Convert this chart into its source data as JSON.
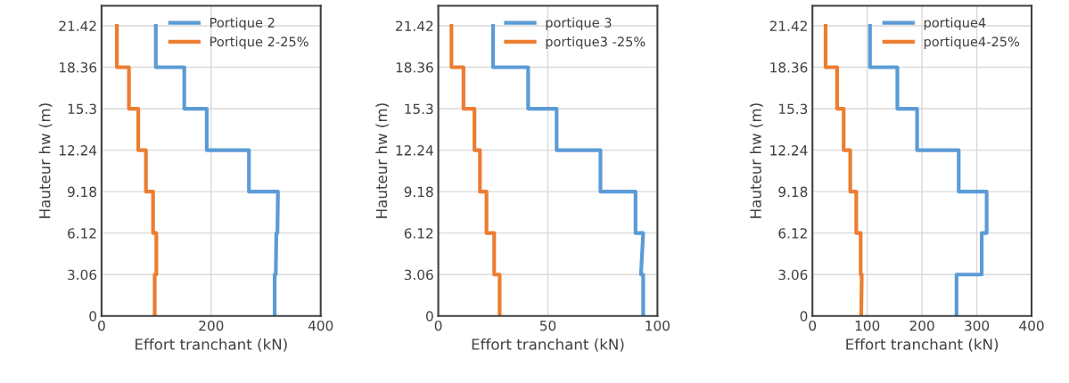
{
  "chart_data": [
    {
      "type": "line",
      "xlabel": "Effort tranchant (kN)",
      "ylabel": "Hauteur hw (m)",
      "xlim": [
        0,
        400
      ],
      "xticks": [
        0,
        200,
        400
      ],
      "ylim": [
        0,
        22.9
      ],
      "yticks": [
        0,
        3.06,
        6.12,
        9.18,
        12.24,
        15.3,
        18.36,
        21.42
      ],
      "grid": true,
      "legend": "top right",
      "series": [
        {
          "name": "Portique 2",
          "color": "#5b9bd5",
          "x": [
            99,
            99,
            151,
            151,
            192,
            192,
            269,
            269,
            322,
            321,
            319,
            318,
            316,
            316
          ],
          "values": [
            21.42,
            18.36,
            18.36,
            15.3,
            15.3,
            12.24,
            12.24,
            9.18,
            9.18,
            6.12,
            6.12,
            3.06,
            3.06,
            0
          ]
        },
        {
          "name": "Portique 2-25%",
          "color": "#ed7d31",
          "x": [
            28,
            28,
            50,
            50,
            67,
            67,
            81,
            81,
            94,
            94,
            100,
            100,
            97,
            97
          ],
          "values": [
            21.42,
            18.36,
            18.36,
            15.3,
            15.3,
            12.24,
            12.24,
            9.18,
            9.18,
            6.12,
            6.12,
            3.06,
            3.06,
            0
          ]
        }
      ]
    },
    {
      "type": "line",
      "xlabel": "Effort tranchant (kN)",
      "ylabel": "Hauteur hw (m)",
      "xlim": [
        0,
        100
      ],
      "xticks": [
        0,
        50,
        100
      ],
      "ylim": [
        0,
        22.9
      ],
      "yticks": [
        0,
        3.06,
        6.12,
        9.18,
        12.24,
        15.3,
        18.36,
        21.42
      ],
      "grid": true,
      "legend": "top right",
      "series": [
        {
          "name": "portique 3",
          "color": "#5b9bd5",
          "x": [
            25,
            25,
            41,
            41,
            54,
            54,
            74,
            74,
            90,
            90,
            93.5,
            92.5,
            93.5,
            93.5
          ],
          "values": [
            21.42,
            18.36,
            18.36,
            15.3,
            15.3,
            12.24,
            12.24,
            9.18,
            9.18,
            6.12,
            6.12,
            3.06,
            3.06,
            0
          ]
        },
        {
          "name": "portique3 -25%",
          "color": "#ed7d31",
          "x": [
            6,
            6,
            11.5,
            11.5,
            16.5,
            16.5,
            19,
            19,
            22,
            22,
            25.5,
            25.5,
            28,
            28
          ],
          "values": [
            21.42,
            18.36,
            18.36,
            15.3,
            15.3,
            12.24,
            12.24,
            9.18,
            9.18,
            6.12,
            6.12,
            3.06,
            3.06,
            0
          ]
        }
      ]
    },
    {
      "type": "line",
      "xlabel": "Effort tranchant (kN)",
      "ylabel": "Hauteur hw (m)",
      "xlim": [
        0,
        400
      ],
      "xticks": [
        0,
        100,
        200,
        300,
        400
      ],
      "ylim": [
        0,
        22.9
      ],
      "yticks": [
        0,
        3.06,
        6.12,
        9.18,
        12.24,
        15.3,
        18.36,
        21.42
      ],
      "grid": true,
      "legend": "top right",
      "series": [
        {
          "name": "portique4",
          "color": "#5b9bd5",
          "x": [
            105,
            105,
            155,
            155,
            191,
            191,
            267,
            267,
            318,
            318,
            309,
            309,
            263,
            263
          ],
          "values": [
            21.42,
            18.36,
            18.36,
            15.3,
            15.3,
            12.24,
            12.24,
            9.18,
            9.18,
            6.12,
            6.12,
            3.06,
            3.06,
            0
          ]
        },
        {
          "name": "portique4-25%",
          "color": "#ed7d31",
          "x": [
            24,
            24,
            45,
            45,
            57,
            57,
            69,
            69,
            80,
            80,
            88,
            88,
            90,
            89
          ],
          "values": [
            21.42,
            18.36,
            18.36,
            15.3,
            15.3,
            12.24,
            12.24,
            9.18,
            9.18,
            6.12,
            6.12,
            3.06,
            3.06,
            0
          ]
        }
      ]
    }
  ]
}
